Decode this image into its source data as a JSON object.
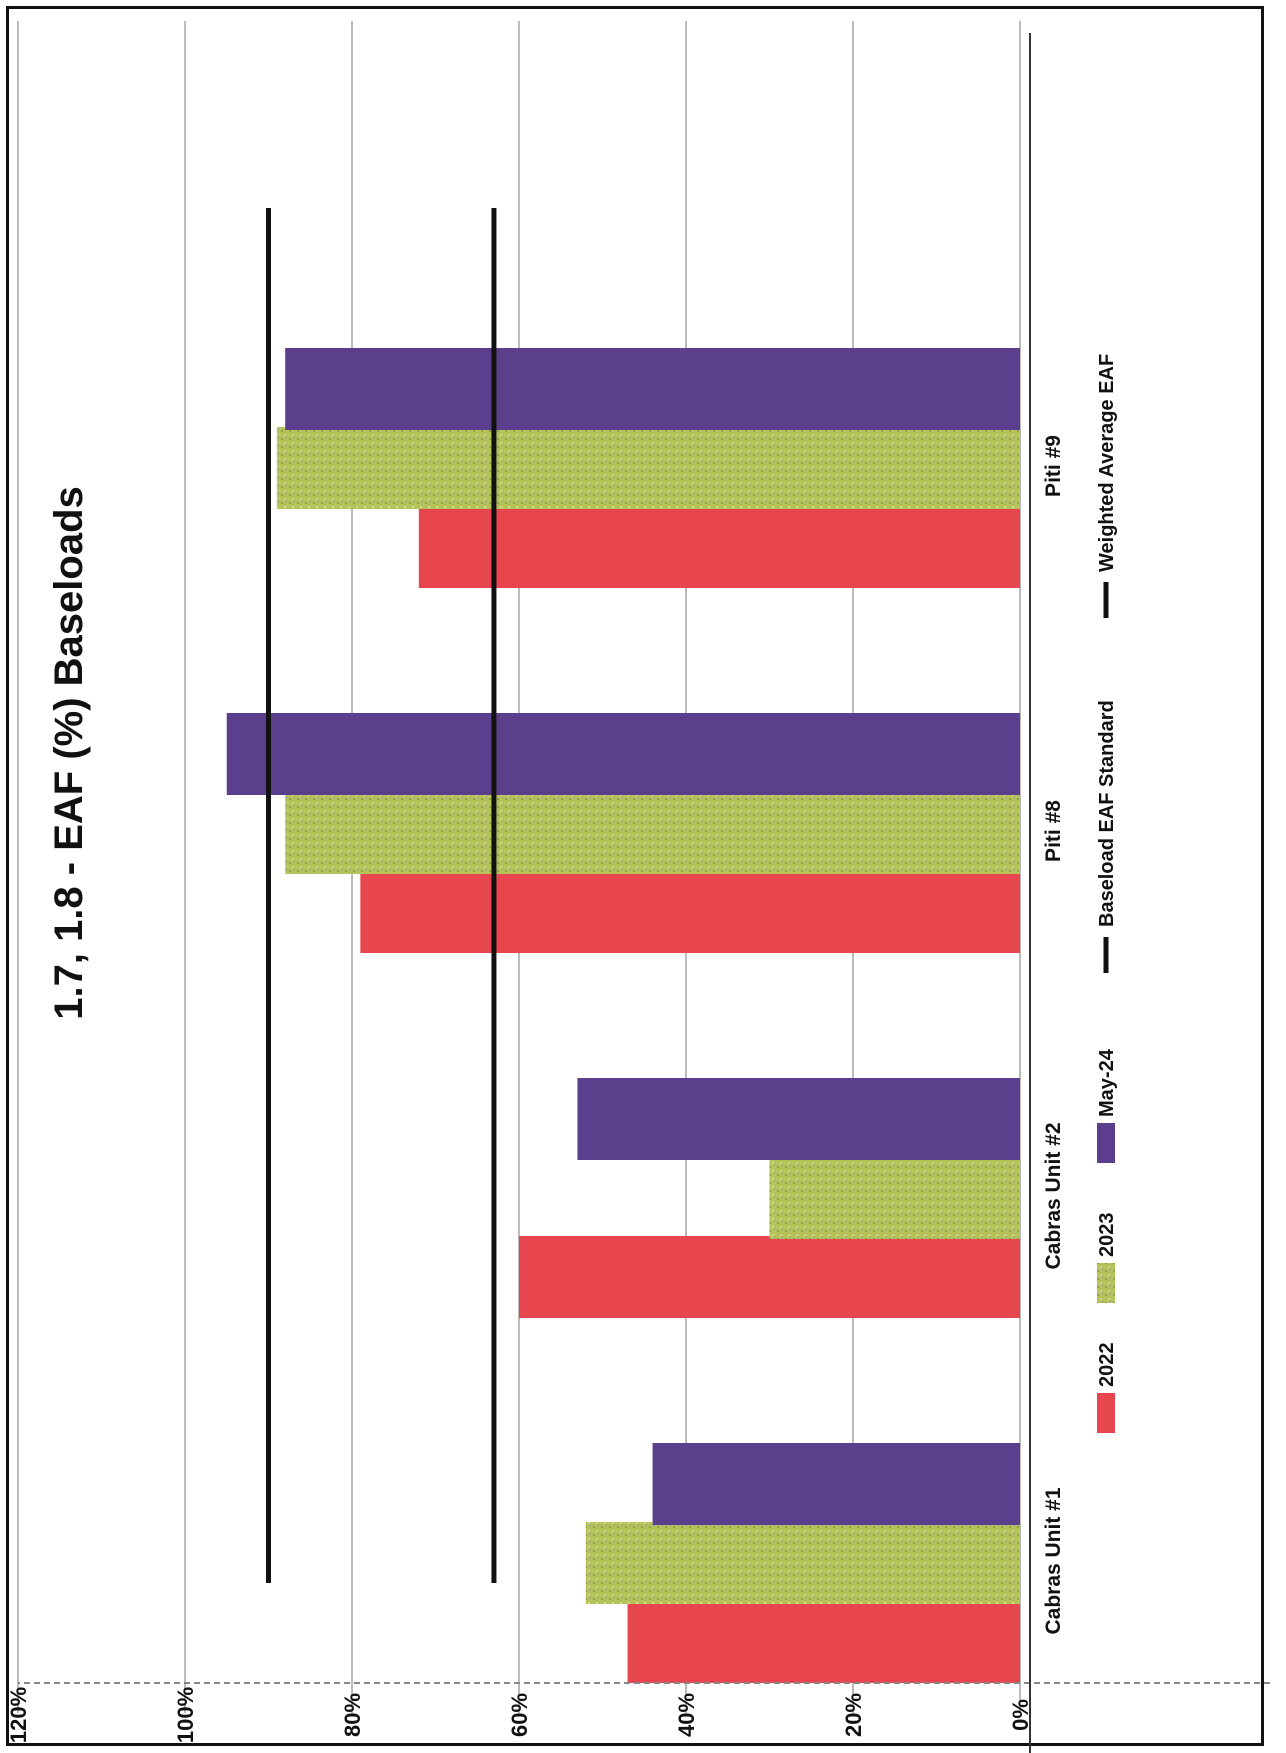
{
  "chart_data": {
    "type": "bar",
    "orientation": "horizontal",
    "title": "1.7, 1.8 - EAF (%) Baseloads",
    "categories": [
      "Cabras Unit #1",
      "Cabras Unit #2",
      "Piti #8",
      "Piti #9"
    ],
    "series": [
      {
        "name": "2022",
        "values": [
          47,
          60,
          79,
          72
        ],
        "color": "#e8464f"
      },
      {
        "name": "2023",
        "values": [
          52,
          30,
          88,
          89
        ],
        "color": "#b5c35a"
      },
      {
        "name": "May-24",
        "values": [
          44,
          53,
          95,
          88
        ],
        "color": "#5b3e8c"
      }
    ],
    "lines": [
      {
        "name": "Baseload EAF Standard",
        "value": 63,
        "color": "#111111"
      },
      {
        "name": "Weighted Average EAF",
        "value": 90,
        "color": "#111111"
      }
    ],
    "xlim": [
      0,
      120
    ],
    "ticks": [
      "0%",
      "20%",
      "40%",
      "60%",
      "80%",
      "100%",
      "120%"
    ],
    "grid": true,
    "legend_position": "bottom"
  }
}
